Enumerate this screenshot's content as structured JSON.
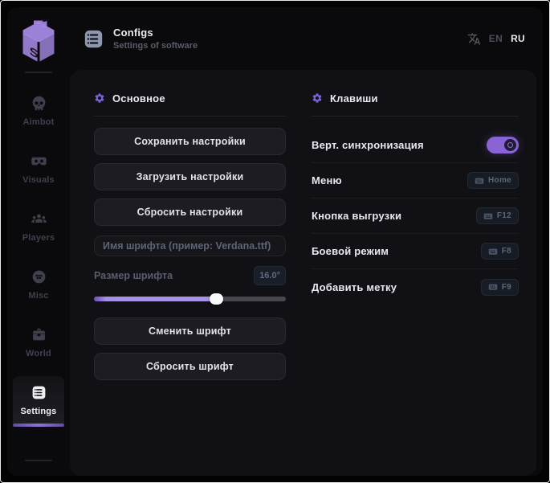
{
  "header": {
    "title": "Configs",
    "subtitle": "Settings of software",
    "lang_en": "EN",
    "lang_ru": "RU",
    "active_lang": "RU"
  },
  "sidebar": {
    "items": [
      {
        "label": "Aimbot",
        "icon": "skull-icon",
        "active": false
      },
      {
        "label": "Visuals",
        "icon": "goggles-icon",
        "active": false
      },
      {
        "label": "Players",
        "icon": "players-icon",
        "active": false
      },
      {
        "label": "Misc",
        "icon": "misc-icon",
        "active": false
      },
      {
        "label": "World",
        "icon": "case-icon",
        "active": false
      },
      {
        "label": "Settings",
        "icon": "list-icon",
        "active": true
      }
    ]
  },
  "main": {
    "general": {
      "title": "Основное",
      "save_button": "Сохранить настройки",
      "load_button": "Загрузить настройки",
      "reset_button": "Сбросить настройки",
      "font_name_placeholder": "Имя шрифта (пример: Verdana.ttf)",
      "font_size_label": "Размер шрифта",
      "font_size_value": "16.0°",
      "font_size_percent": 64,
      "change_font_button": "Сменить шрифт",
      "reset_font_button": "Сбросить шрифт"
    },
    "keys": {
      "title": "Клавиши",
      "rows": [
        {
          "label": "Верт. синхронизация",
          "control": "toggle",
          "state": "on"
        },
        {
          "label": "Меню",
          "control": "keybind",
          "key": "Home"
        },
        {
          "label": "Кнопка выгрузки",
          "control": "keybind",
          "key": "F12"
        },
        {
          "label": "Боевой режим",
          "control": "keybind",
          "key": "F8"
        },
        {
          "label": "Добавить метку",
          "control": "keybind",
          "key": "F9"
        }
      ]
    }
  },
  "colors": {
    "accent": "#8a64d4",
    "panel": "#111115",
    "window": "#0a0a0d",
    "button": "#1c1c22",
    "text": "#e9e8ee",
    "muted": "#5d6778"
  }
}
